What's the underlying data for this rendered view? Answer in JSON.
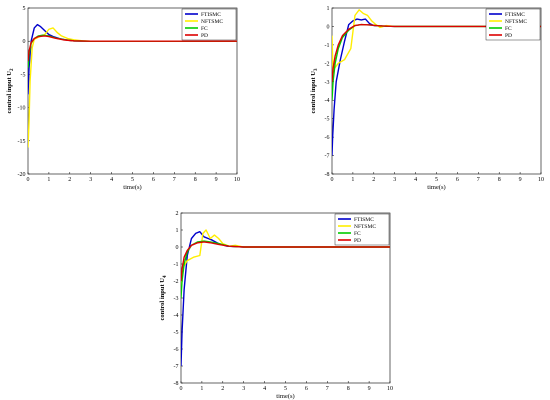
{
  "chart_data": [
    {
      "type": "line",
      "xlabel": "time(s)",
      "ylabel": "control input U",
      "ylabel_sub": "2",
      "xlim": [
        0,
        10
      ],
      "ylim": [
        -20,
        5
      ],
      "xticks": [
        0,
        1,
        2,
        3,
        4,
        5,
        6,
        7,
        8,
        9,
        10
      ],
      "yticks": [
        -20,
        -15,
        -10,
        -5,
        0,
        5
      ],
      "legend": "top-right",
      "series": [
        {
          "name": "FTISMC",
          "color": "#0000cc",
          "x": [
            0,
            0.05,
            0.15,
            0.3,
            0.45,
            0.6,
            0.8,
            1.0,
            1.2,
            1.5,
            1.8,
            2.2,
            2.8,
            4,
            10
          ],
          "y": [
            -8,
            -4,
            0,
            2,
            2.5,
            2.2,
            1.6,
            1.0,
            0.7,
            0.4,
            0.2,
            0.05,
            0,
            0,
            0
          ]
        },
        {
          "name": "NFTSMC",
          "color": "#ffee00",
          "x": [
            0,
            0.05,
            0.1,
            0.2,
            0.3,
            0.5,
            0.8,
            1.0,
            1.2,
            1.4,
            1.6,
            1.9,
            2.2,
            2.6,
            3,
            10
          ],
          "y": [
            -16,
            -12,
            -6,
            -1,
            0.3,
            0.6,
            1.0,
            1.8,
            2.0,
            1.3,
            0.8,
            0.4,
            0.2,
            0.05,
            0,
            0
          ]
        },
        {
          "name": "FC",
          "color": "#00cc00",
          "x": [
            0,
            0.05,
            0.15,
            0.3,
            0.5,
            0.7,
            1.0,
            1.3,
            1.7,
            2.2,
            3,
            10
          ],
          "y": [
            -4,
            -2,
            -0.3,
            0.4,
            0.8,
            0.9,
            0.8,
            0.5,
            0.25,
            0.05,
            0,
            0
          ]
        },
        {
          "name": "PD",
          "color": "#dd0000",
          "x": [
            0,
            0.05,
            0.15,
            0.3,
            0.5,
            0.8,
            1.0,
            1.3,
            1.7,
            2.2,
            3,
            10
          ],
          "y": [
            -3,
            -1.5,
            -0.2,
            0.4,
            0.7,
            0.8,
            0.7,
            0.45,
            0.2,
            0.05,
            0,
            0
          ]
        }
      ]
    },
    {
      "type": "line",
      "xlabel": "time(s)",
      "ylabel": "control input U",
      "ylabel_sub": "3",
      "xlim": [
        0,
        10
      ],
      "ylim": [
        -8,
        1
      ],
      "xticks": [
        0,
        1,
        2,
        3,
        4,
        5,
        6,
        7,
        8,
        9,
        10
      ],
      "yticks": [
        -8,
        -7,
        -6,
        -5,
        -4,
        -3,
        -2,
        -1,
        0,
        1
      ],
      "legend": "top-right",
      "series": [
        {
          "name": "FTISMC",
          "color": "#0000cc",
          "x": [
            0,
            0.03,
            0.1,
            0.2,
            0.4,
            0.6,
            0.8,
            1.0,
            1.2,
            1.4,
            1.6,
            1.8,
            2.0,
            2.4,
            3,
            10
          ],
          "y": [
            -7,
            -6,
            -4.5,
            -3,
            -1.8,
            -0.8,
            0.1,
            0.3,
            0.4,
            0.35,
            0.4,
            0.15,
            0.05,
            0.02,
            0,
            0
          ]
        },
        {
          "name": "NFTSMC",
          "color": "#ffee00",
          "x": [
            0,
            0.05,
            0.1,
            0.3,
            0.6,
            0.9,
            1.1,
            1.3,
            1.5,
            1.7,
            1.9,
            2.1,
            2.3,
            2.6,
            3,
            10
          ],
          "y": [
            -0.5,
            -2.5,
            -2.3,
            -2.0,
            -1.8,
            -1.2,
            0.6,
            0.9,
            0.7,
            0.6,
            0.3,
            0.1,
            -0.05,
            0.05,
            0,
            0
          ]
        },
        {
          "name": "FC",
          "color": "#00cc00",
          "x": [
            0,
            0.05,
            0.15,
            0.3,
            0.5,
            0.8,
            1.1,
            1.4,
            1.8,
            2.3,
            3,
            10
          ],
          "y": [
            -4,
            -3,
            -2,
            -1.2,
            -0.6,
            -0.2,
            0.05,
            0.1,
            0.08,
            0.03,
            0,
            0
          ]
        },
        {
          "name": "PD",
          "color": "#dd0000",
          "x": [
            0,
            0.05,
            0.15,
            0.3,
            0.5,
            0.8,
            1.1,
            1.4,
            1.8,
            2.3,
            3,
            10
          ],
          "y": [
            -3,
            -2.3,
            -1.6,
            -1.0,
            -0.5,
            -0.15,
            0.05,
            0.1,
            0.08,
            0.03,
            0,
            0
          ]
        }
      ]
    },
    {
      "type": "line",
      "xlabel": "time(s)",
      "ylabel": "control input U",
      "ylabel_sub": "4",
      "xlim": [
        0,
        10
      ],
      "ylim": [
        -8,
        2
      ],
      "xticks": [
        0,
        1,
        2,
        3,
        4,
        5,
        6,
        7,
        8,
        9,
        10
      ],
      "yticks": [
        -8,
        -7,
        -6,
        -5,
        -4,
        -3,
        -2,
        -1,
        0,
        1,
        2
      ],
      "legend": "top-right",
      "series": [
        {
          "name": "FTISMC",
          "color": "#0000cc",
          "x": [
            0,
            0.05,
            0.15,
            0.3,
            0.5,
            0.7,
            0.9,
            1.1,
            1.3,
            1.5,
            1.8,
            2.2,
            3,
            10
          ],
          "y": [
            -7,
            -5,
            -2.5,
            -0.5,
            0.5,
            0.8,
            0.9,
            0.6,
            0.5,
            0.4,
            0.2,
            0.05,
            0,
            0
          ]
        },
        {
          "name": "NFTSMC",
          "color": "#ffee00",
          "x": [
            0,
            0.05,
            0.1,
            0.3,
            0.6,
            0.9,
            1.05,
            1.2,
            1.4,
            1.6,
            1.8,
            2.0,
            2.3,
            2.6,
            3,
            10
          ],
          "y": [
            -2.5,
            -1.5,
            -1.2,
            -0.8,
            -0.6,
            -0.5,
            0.8,
            1.0,
            0.5,
            0.7,
            0.5,
            0.2,
            0.05,
            0.1,
            0,
            0
          ]
        },
        {
          "name": "FC",
          "color": "#00cc00",
          "x": [
            0,
            0.05,
            0.15,
            0.3,
            0.5,
            0.8,
            1.1,
            1.4,
            1.8,
            2.3,
            3,
            10
          ],
          "y": [
            -3,
            -2,
            -1,
            -0.3,
            0.1,
            0.3,
            0.35,
            0.3,
            0.2,
            0.05,
            0,
            0
          ]
        },
        {
          "name": "PD",
          "color": "#dd0000",
          "x": [
            0,
            0.05,
            0.15,
            0.3,
            0.5,
            0.8,
            1.1,
            1.4,
            1.8,
            2.3,
            3,
            10
          ],
          "y": [
            -2,
            -1.3,
            -0.6,
            -0.2,
            0.1,
            0.25,
            0.3,
            0.25,
            0.15,
            0.05,
            0,
            0
          ]
        }
      ]
    }
  ]
}
